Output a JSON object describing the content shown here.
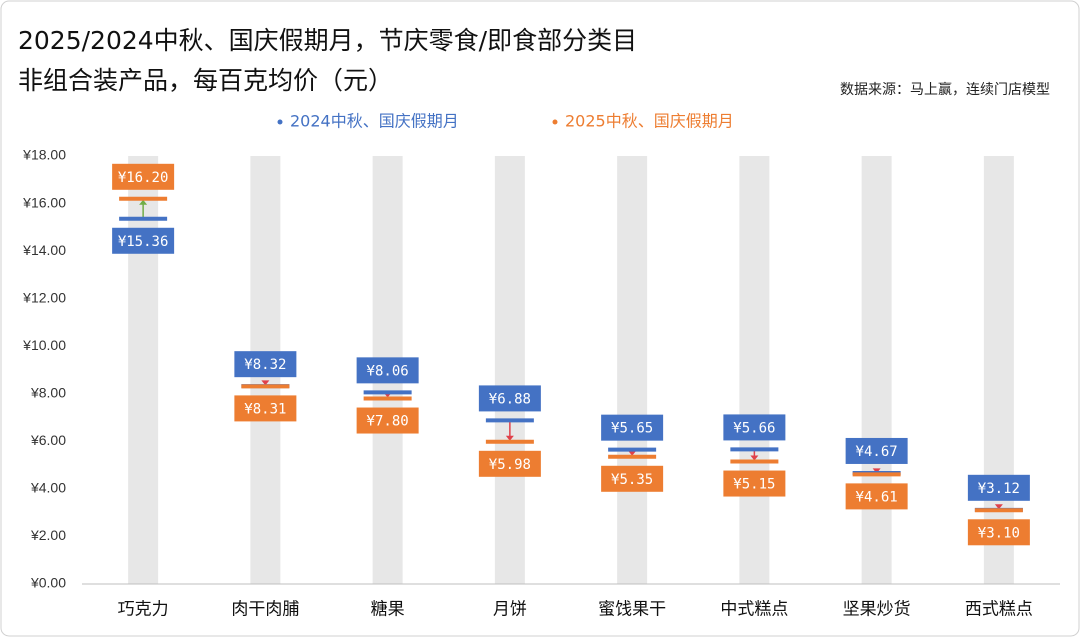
{
  "chart_data": {
    "type": "dumbbell",
    "title": "2025/2024中秋、国庆假期月，节庆零食/即食部分类目",
    "subtitle": "非组合装产品，每百克均价（元）",
    "source": "数据来源：马上赢，连续门店模型",
    "categories": [
      "巧克力",
      "肉干肉脯",
      "糖果",
      "月饼",
      "蜜饯果干",
      "中式糕点",
      "坚果炒货",
      "西式糕点"
    ],
    "series": [
      {
        "name": "2024中秋、国庆假期月",
        "color": "#4472c4",
        "values": [
          15.36,
          8.32,
          8.06,
          6.88,
          5.65,
          5.66,
          4.67,
          3.12
        ],
        "value_labels": [
          "¥15.36",
          "¥8.32",
          "¥8.06",
          "¥6.88",
          "¥5.65",
          "¥5.66",
          "¥4.67",
          "¥3.12"
        ]
      },
      {
        "name": "2025中秋、国庆假期月",
        "color": "#ed7d31",
        "values": [
          16.2,
          8.31,
          7.8,
          5.98,
          5.35,
          5.15,
          4.61,
          3.1
        ],
        "value_labels": [
          "¥16.20",
          "¥8.31",
          "¥7.80",
          "¥5.98",
          "¥5.35",
          "¥5.15",
          "¥4.61",
          "¥3.10"
        ]
      }
    ],
    "ylim": [
      0,
      18
    ],
    "yticks": [
      {
        "value": 0,
        "label": "¥0.00"
      },
      {
        "value": 2,
        "label": "¥2.00"
      },
      {
        "value": 4,
        "label": "¥4.00"
      },
      {
        "value": 6,
        "label": "¥6.00"
      },
      {
        "value": 8,
        "label": "¥8.00"
      },
      {
        "value": 10,
        "label": "¥10.00"
      },
      {
        "value": 12,
        "label": "¥12.00"
      },
      {
        "value": 14,
        "label": "¥14.00"
      },
      {
        "value": 16,
        "label": "¥16.00"
      },
      {
        "value": 18,
        "label": "¥18.00"
      }
    ],
    "increase_color": "#70ad47",
    "decrease_color": "#e0404a"
  }
}
